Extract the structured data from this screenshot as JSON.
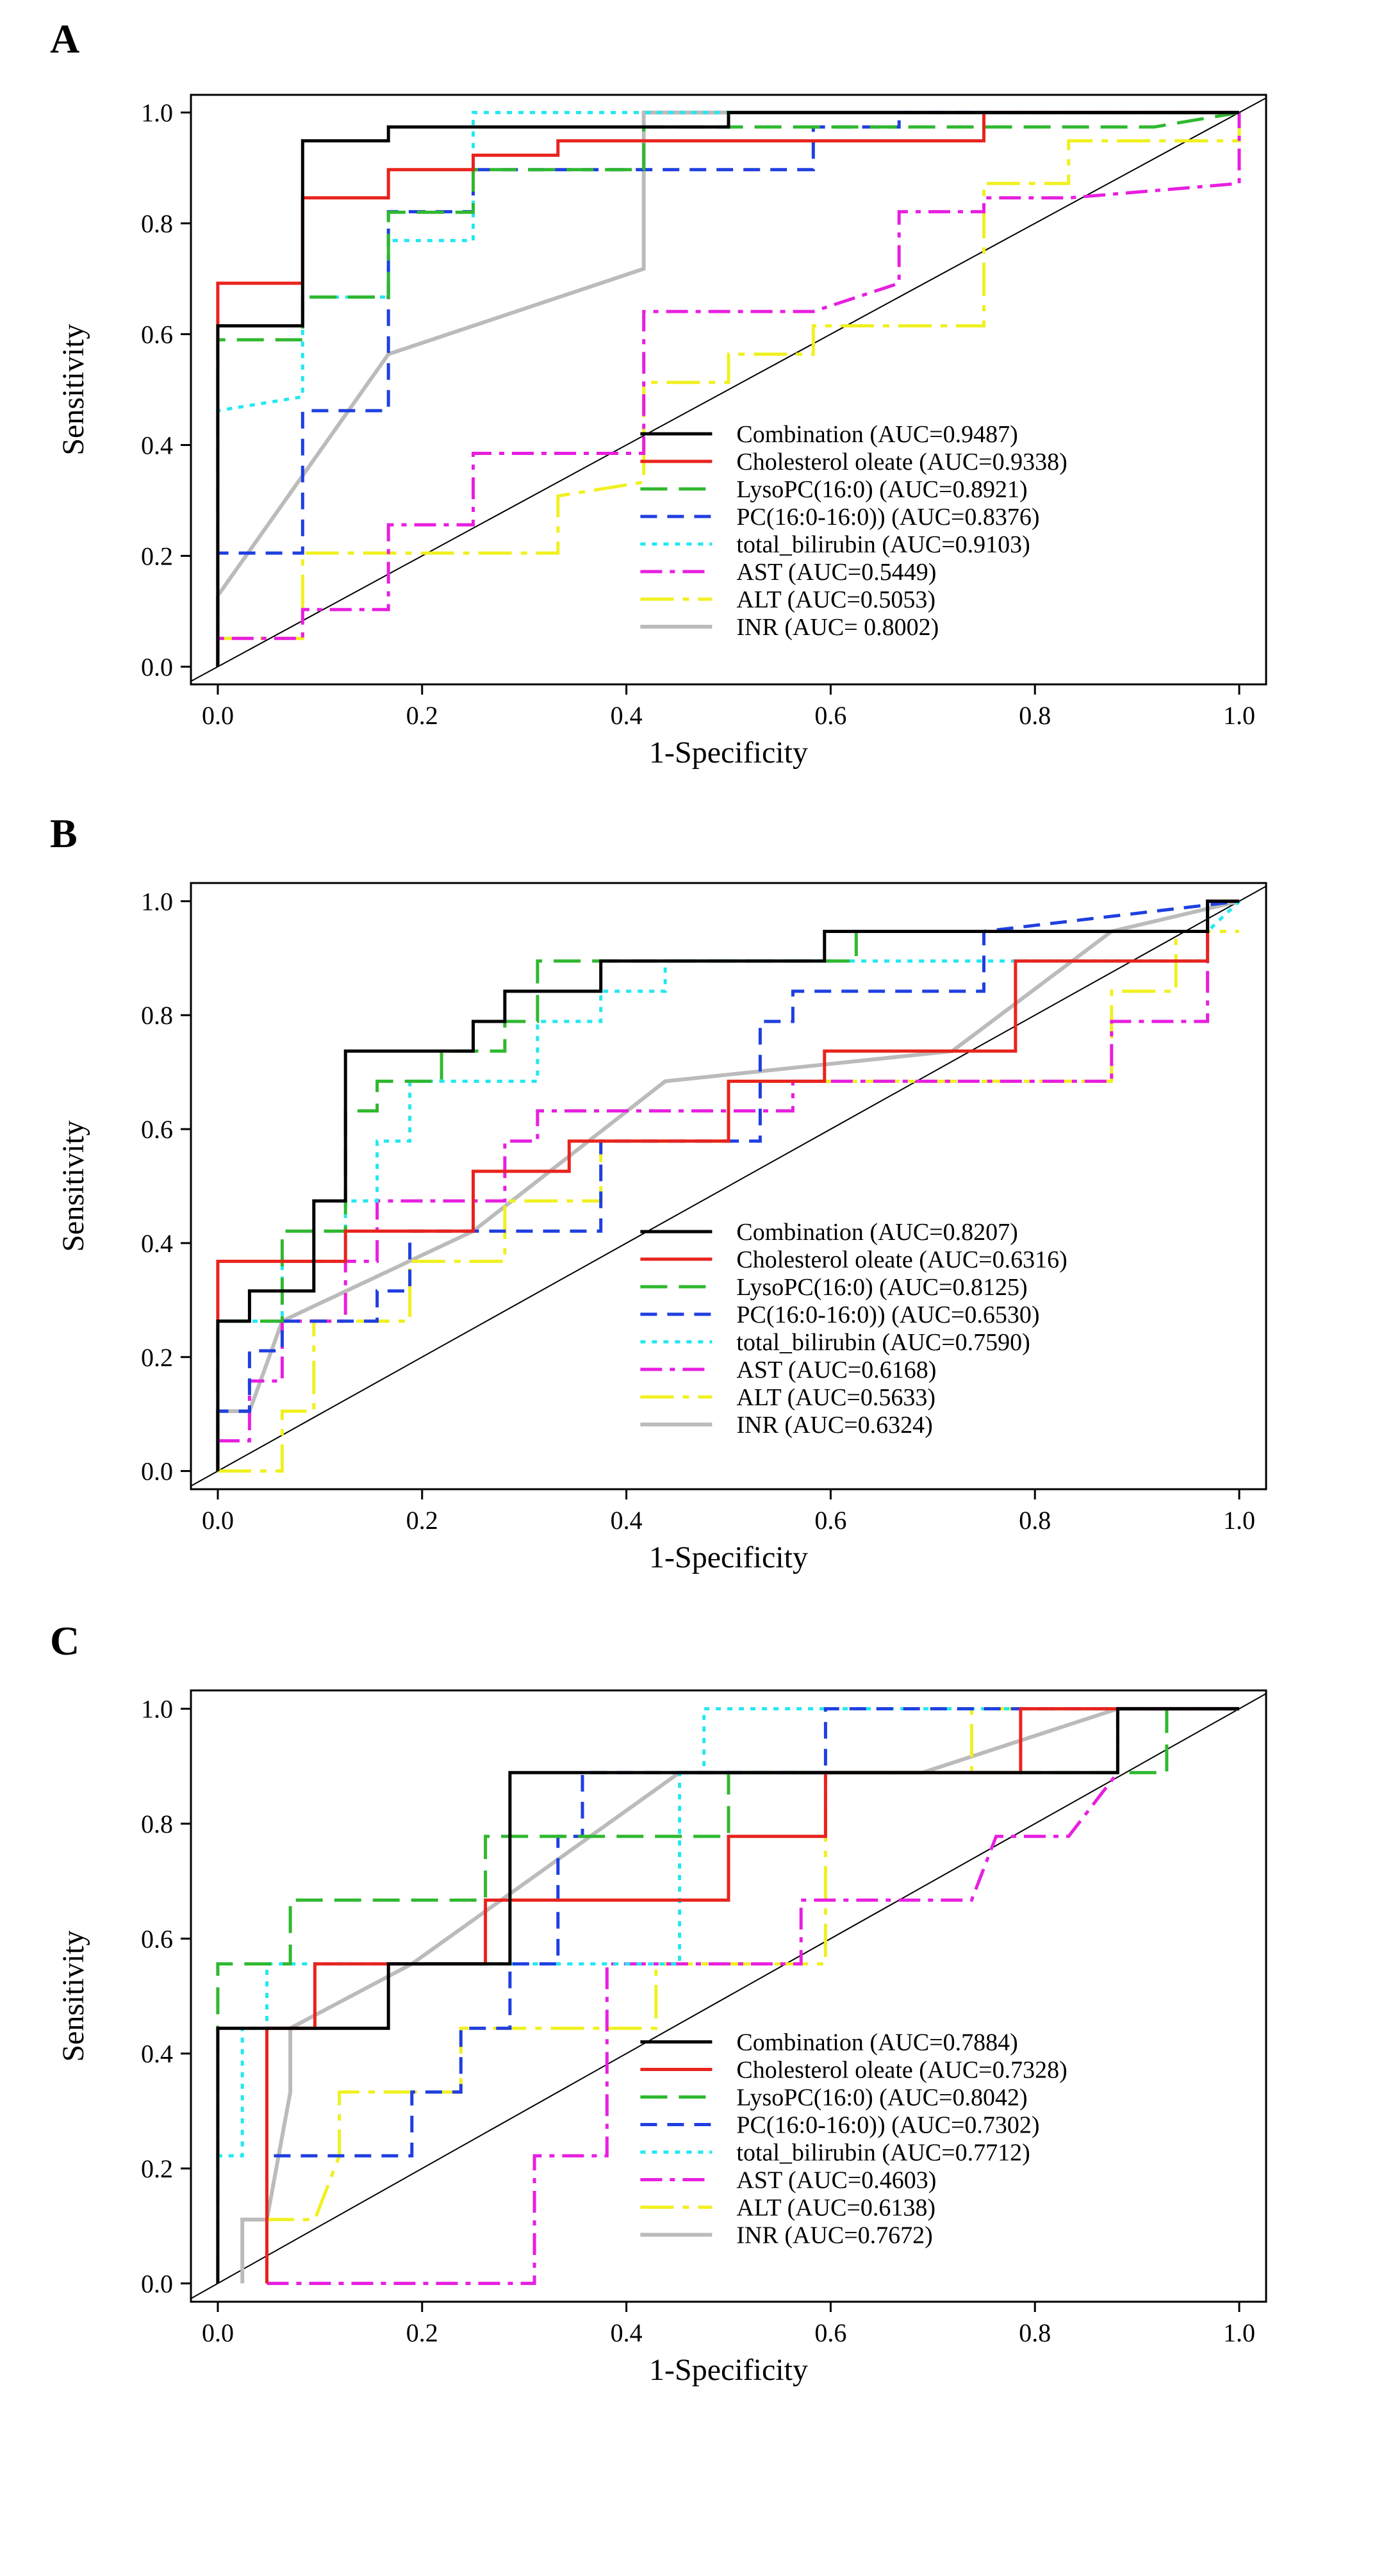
{
  "figure": {
    "panels": [
      "A",
      "B",
      "C"
    ]
  },
  "chart_data": [
    {
      "panel": "A",
      "type": "line",
      "title": "",
      "xlabel": "1-Specificity",
      "ylabel": "Sensitivity",
      "xlim": [
        0,
        1
      ],
      "ylim": [
        0,
        1
      ],
      "xticks": [
        "0.0",
        "0.2",
        "0.4",
        "0.6",
        "0.8",
        "1.0"
      ],
      "yticks": [
        "0.0",
        "0.2",
        "0.4",
        "0.6",
        "0.8",
        "1.0"
      ],
      "diagonal": true,
      "legend_position": "bottom-right",
      "series": [
        {
          "name": "Combination",
          "label": "Combination (AUC=0.9487)",
          "color": "#000000",
          "dash": "solid",
          "x": [
            0,
            0,
            0.083,
            0.083,
            0.167,
            0.167,
            0.25,
            0.25,
            0.333,
            0.333,
            0.5,
            0.5,
            1
          ],
          "y": [
            0,
            0.615,
            0.615,
            0.949,
            0.949,
            0.974,
            0.974,
            0.974,
            0.974,
            0.974,
            0.974,
            1,
            1
          ]
        },
        {
          "name": "Cholesterol oleate",
          "label": "Cholesterol oleate (AUC=0.9338)",
          "color": "#e8231d",
          "dash": "solid",
          "x": [
            0,
            0,
            0.083,
            0.083,
            0.167,
            0.167,
            0.25,
            0.25,
            0.333,
            0.333,
            0.75,
            0.75,
            1
          ],
          "y": [
            0,
            0.692,
            0.692,
            0.846,
            0.846,
            0.897,
            0.897,
            0.923,
            0.923,
            0.949,
            0.949,
            1,
            1
          ]
        },
        {
          "name": "LysoPC(16:0)",
          "label": "LysoPC(16:0) (AUC=0.8921)",
          "color": "#2fb82f",
          "dash": "longdash",
          "x": [
            0,
            0,
            0.083,
            0.083,
            0.167,
            0.167,
            0.25,
            0.25,
            0.417,
            0.417,
            0.917,
            1
          ],
          "y": [
            0,
            0.59,
            0.59,
            0.667,
            0.667,
            0.82,
            0.82,
            0.897,
            0.897,
            0.974,
            0.974,
            1
          ]
        },
        {
          "name": "PC(16:0-16:0))",
          "label": "PC(16:0-16:0)) (AUC=0.8376)",
          "color": "#1f3fe0",
          "dash": "dashed",
          "x": [
            0,
            0,
            0.083,
            0.083,
            0.167,
            0.167,
            0.25,
            0.25,
            0.583,
            0.583,
            0.667,
            0.667,
            1
          ],
          "y": [
            0,
            0.205,
            0.205,
            0.462,
            0.462,
            0.821,
            0.821,
            0.897,
            0.897,
            0.974,
            0.974,
            1,
            1
          ]
        },
        {
          "name": "total_bilirubin",
          "label": "total_bilirubin (AUC=0.9103)",
          "color": "#22e8f0",
          "dash": "dotted",
          "x": [
            0,
            0,
            0.083,
            0.083,
            0.167,
            0.167,
            0.25,
            0.25,
            1
          ],
          "y": [
            0,
            0.462,
            0.487,
            0.667,
            0.667,
            0.769,
            0.769,
            1,
            1
          ]
        },
        {
          "name": "AST",
          "label": "AST (AUC=0.5449)",
          "color": "#e81ee0",
          "dash": "dashdot",
          "x": [
            0,
            0,
            0.083,
            0.083,
            0.167,
            0.167,
            0.25,
            0.25,
            0.417,
            0.417,
            0.583,
            0.667,
            0.667,
            0.75,
            0.75,
            0.833,
            1,
            1
          ],
          "y": [
            0,
            0.051,
            0.051,
            0.103,
            0.103,
            0.256,
            0.256,
            0.385,
            0.385,
            0.641,
            0.641,
            0.692,
            0.821,
            0.821,
            0.846,
            0.846,
            0.872,
            1
          ]
        },
        {
          "name": "ALT",
          "label": "ALT (AUC=0.5053)",
          "color": "#f0f020",
          "dash": "longdashdot",
          "x": [
            0,
            0.083,
            0.083,
            0.333,
            0.333,
            0.417,
            0.417,
            0.5,
            0.5,
            0.583,
            0.583,
            0.75,
            0.75,
            0.833,
            0.833,
            1,
            1
          ],
          "y": [
            0.051,
            0.051,
            0.205,
            0.205,
            0.308,
            0.333,
            0.513,
            0.513,
            0.564,
            0.564,
            0.615,
            0.615,
            0.872,
            0.872,
            0.949,
            0.949,
            1
          ]
        },
        {
          "name": "INR",
          "label": "INR (AUC= 0.8002)",
          "color": "#bbbbbb",
          "dash": "solid",
          "x": [
            0,
            0,
            0.167,
            0.417,
            0.417,
            1
          ],
          "y": [
            0,
            0.128,
            0.564,
            0.718,
            1,
            1
          ]
        }
      ]
    },
    {
      "panel": "B",
      "type": "line",
      "title": "",
      "xlabel": "1-Specificity",
      "ylabel": "Sensitivity",
      "xlim": [
        0,
        1
      ],
      "ylim": [
        0,
        1
      ],
      "xticks": [
        "0.0",
        "0.2",
        "0.4",
        "0.6",
        "0.8",
        "1.0"
      ],
      "yticks": [
        "0.0",
        "0.2",
        "0.4",
        "0.6",
        "0.8",
        "1.0"
      ],
      "diagonal": true,
      "legend_position": "bottom-right",
      "series": [
        {
          "name": "Combination",
          "label": "Combination (AUC=0.8207)",
          "color": "#000000",
          "dash": "solid",
          "x": [
            0,
            0,
            0.031,
            0.031,
            0.094,
            0.094,
            0.125,
            0.125,
            0.25,
            0.25,
            0.281,
            0.281,
            0.375,
            0.375,
            0.594,
            0.594,
            0.969,
            0.969,
            1
          ],
          "y": [
            0,
            0.263,
            0.263,
            0.316,
            0.316,
            0.474,
            0.474,
            0.737,
            0.737,
            0.789,
            0.789,
            0.842,
            0.842,
            0.895,
            0.895,
            0.947,
            0.947,
            1,
            1
          ]
        },
        {
          "name": "Cholesterol oleate",
          "label": "Cholesterol oleate (AUC=0.6316)",
          "color": "#e8231d",
          "dash": "solid",
          "x": [
            0,
            0,
            0.125,
            0.125,
            0.25,
            0.25,
            0.344,
            0.344,
            0.5,
            0.5,
            0.594,
            0.594,
            0.719,
            0.719,
            0.781,
            0.781,
            0.969,
            0.969,
            1
          ],
          "y": [
            0,
            0.368,
            0.368,
            0.421,
            0.421,
            0.526,
            0.526,
            0.579,
            0.579,
            0.684,
            0.684,
            0.737,
            0.737,
            0.737,
            0.737,
            0.895,
            0.895,
            1,
            1
          ]
        },
        {
          "name": "LysoPC(16:0)",
          "label": "LysoPC(16:0) (AUC=0.8125)",
          "color": "#2fb82f",
          "dash": "longdash",
          "x": [
            0,
            0,
            0.063,
            0.063,
            0.125,
            0.125,
            0.156,
            0.156,
            0.219,
            0.219,
            0.281,
            0.281,
            0.313,
            0.313,
            0.625,
            0.625,
            0.969,
            0.969,
            1
          ],
          "y": [
            0,
            0.263,
            0.263,
            0.421,
            0.421,
            0.632,
            0.632,
            0.684,
            0.684,
            0.737,
            0.737,
            0.789,
            0.789,
            0.895,
            0.895,
            0.947,
            0.947,
            1,
            1
          ]
        },
        {
          "name": "PC(16:0-16:0))",
          "label": "PC(16:0-16:0)) (AUC=0.6530)",
          "color": "#1f3fe0",
          "dash": "dashed",
          "x": [
            0,
            0,
            0.031,
            0.031,
            0.063,
            0.063,
            0.156,
            0.156,
            0.188,
            0.188,
            0.375,
            0.375,
            0.531,
            0.531,
            0.563,
            0.563,
            0.75,
            0.75,
            1
          ],
          "y": [
            0,
            0.105,
            0.105,
            0.211,
            0.211,
            0.263,
            0.263,
            0.316,
            0.316,
            0.421,
            0.421,
            0.579,
            0.579,
            0.789,
            0.789,
            0.842,
            0.842,
            0.947,
            1
          ]
        },
        {
          "name": "total_bilirubin",
          "label": "total_bilirubin (AUC=0.7590)",
          "color": "#22e8f0",
          "dash": "dotted",
          "x": [
            0,
            0,
            0.063,
            0.063,
            0.125,
            0.125,
            0.156,
            0.156,
            0.188,
            0.188,
            0.313,
            0.313,
            0.375,
            0.375,
            0.438,
            0.438,
            0.969,
            0.969,
            1
          ],
          "y": [
            0,
            0.263,
            0.263,
            0.368,
            0.368,
            0.474,
            0.474,
            0.579,
            0.579,
            0.684,
            0.684,
            0.789,
            0.789,
            0.842,
            0.842,
            0.895,
            0.895,
            0.947,
            1
          ]
        },
        {
          "name": "AST",
          "label": "AST (AUC=0.6168)",
          "color": "#e81ee0",
          "dash": "dashdot",
          "x": [
            0,
            0,
            0.031,
            0.031,
            0.063,
            0.063,
            0.125,
            0.125,
            0.156,
            0.156,
            0.281,
            0.281,
            0.313,
            0.313,
            0.563,
            0.563,
            0.875,
            0.875,
            0.969,
            0.969,
            1
          ],
          "y": [
            0.053,
            0.053,
            0.053,
            0.158,
            0.158,
            0.263,
            0.263,
            0.368,
            0.368,
            0.474,
            0.474,
            0.579,
            0.579,
            0.632,
            0.632,
            0.684,
            0.684,
            0.789,
            0.789,
            1,
            1
          ]
        },
        {
          "name": "ALT",
          "label": "ALT (AUC=0.5633)",
          "color": "#f0f020",
          "dash": "longdashdot",
          "x": [
            0,
            0.063,
            0.063,
            0.094,
            0.094,
            0.188,
            0.188,
            0.281,
            0.281,
            0.375,
            0.375,
            0.5,
            0.5,
            0.875,
            0.875,
            0.938,
            0.938,
            1
          ],
          "y": [
            0,
            0,
            0.105,
            0.105,
            0.263,
            0.263,
            0.368,
            0.368,
            0.474,
            0.474,
            0.579,
            0.579,
            0.684,
            0.684,
            0.842,
            0.842,
            0.947,
            0.947
          ]
        },
        {
          "name": "INR",
          "label": "INR (AUC=0.6324)",
          "color": "#bbbbbb",
          "dash": "solid",
          "x": [
            0,
            0,
            0.031,
            0.063,
            0.25,
            0.438,
            0.719,
            0.875,
            1
          ],
          "y": [
            0,
            0.105,
            0.105,
            0.263,
            0.421,
            0.684,
            0.737,
            0.947,
            1
          ]
        }
      ]
    },
    {
      "panel": "C",
      "type": "line",
      "title": "",
      "xlabel": "1-Specificity",
      "ylabel": "Sensitivity",
      "xlim": [
        0,
        1
      ],
      "ylim": [
        0,
        1
      ],
      "xticks": [
        "0.0",
        "0.2",
        "0.4",
        "0.6",
        "0.8",
        "1.0"
      ],
      "yticks": [
        "0.0",
        "0.2",
        "0.4",
        "0.6",
        "0.8",
        "1.0"
      ],
      "diagonal": true,
      "legend_position": "bottom-right",
      "series": [
        {
          "name": "Combination",
          "label": "Combination (AUC=0.7884)",
          "color": "#000000",
          "dash": "solid",
          "x": [
            0,
            0,
            0.167,
            0.167,
            0.286,
            0.286,
            0.405,
            0.405,
            0.881,
            0.881,
            1
          ],
          "y": [
            0,
            0.444,
            0.444,
            0.556,
            0.556,
            0.889,
            0.889,
            0.889,
            0.889,
            1,
            1
          ]
        },
        {
          "name": "Cholesterol oleate",
          "label": "Cholesterol oleate (AUC=0.7328)",
          "color": "#e8231d",
          "dash": "solid",
          "x": [
            0.048,
            0.048,
            0.095,
            0.095,
            0.262,
            0.262,
            0.5,
            0.5,
            0.595,
            0.595,
            0.786,
            0.786,
            1
          ],
          "y": [
            0,
            0.444,
            0.444,
            0.556,
            0.556,
            0.667,
            0.667,
            0.778,
            0.778,
            0.889,
            0.889,
            1,
            1
          ]
        },
        {
          "name": "LysoPC(16:0)",
          "label": "LysoPC(16:0) (AUC=0.8042)",
          "color": "#2fb82f",
          "dash": "longdash",
          "x": [
            0,
            0,
            0.071,
            0.071,
            0.262,
            0.262,
            0.5,
            0.5,
            0.595,
            0.595,
            0.929,
            0.929
          ],
          "y": [
            0,
            0.556,
            0.556,
            0.667,
            0.667,
            0.778,
            0.778,
            0.889,
            0.889,
            0.889,
            0.889,
            1
          ]
        },
        {
          "name": "PC(16:0-16:0))",
          "label": "PC(16:0-16:0)) (AUC=0.7302)",
          "color": "#1f3fe0",
          "dash": "dashed",
          "x": [
            0.048,
            0.048,
            0.19,
            0.19,
            0.238,
            0.238,
            0.286,
            0.286,
            0.333,
            0.333,
            0.357,
            0.357,
            0.595,
            0.595,
            1
          ],
          "y": [
            0,
            0.222,
            0.222,
            0.333,
            0.333,
            0.444,
            0.444,
            0.556,
            0.556,
            0.778,
            0.778,
            0.889,
            0.889,
            1,
            1
          ]
        },
        {
          "name": "total_bilirubin",
          "label": "total_bilirubin (AUC=0.7712)",
          "color": "#22e8f0",
          "dash": "dotted",
          "x": [
            0,
            0,
            0.024,
            0.024,
            0.048,
            0.048,
            0.19,
            0.19,
            0.452,
            0.452,
            0.476,
            0.476,
            1
          ],
          "y": [
            0,
            0.222,
            0.222,
            0.444,
            0.444,
            0.556,
            0.556,
            0.556,
            0.556,
            0.889,
            0.889,
            1,
            1
          ]
        },
        {
          "name": "AST",
          "label": "AST (AUC=0.4603)",
          "color": "#e81ee0",
          "dash": "dashdot",
          "x": [
            0.048,
            0.31,
            0.31,
            0.381,
            0.381,
            0.381,
            0.381,
            0.571,
            0.571,
            0.738,
            0.762,
            0.833,
            0.881,
            0.881,
            1
          ],
          "y": [
            0,
            0,
            0.222,
            0.222,
            0.444,
            0.556,
            0.556,
            0.556,
            0.667,
            0.667,
            0.778,
            0.778,
            0.889,
            1,
            1
          ]
        },
        {
          "name": "ALT",
          "label": "ALT (AUC=0.6138)",
          "color": "#f0f020",
          "dash": "longdashdot",
          "x": [
            0.048,
            0.048,
            0.095,
            0.119,
            0.119,
            0.238,
            0.238,
            0.429,
            0.429,
            0.595,
            0.595,
            0.738,
            0.738,
            1
          ],
          "y": [
            0,
            0.111,
            0.111,
            0.222,
            0.333,
            0.333,
            0.444,
            0.444,
            0.556,
            0.556,
            0.889,
            0.889,
            1,
            1
          ]
        },
        {
          "name": "INR",
          "label": "INR (AUC=0.7672)",
          "color": "#bbbbbb",
          "dash": "solid",
          "x": [
            0.024,
            0.024,
            0.048,
            0.071,
            0.071,
            0.19,
            0.452,
            0.69,
            0.881,
            1
          ],
          "y": [
            0,
            0.111,
            0.111,
            0.333,
            0.444,
            0.556,
            0.889,
            0.889,
            1,
            1
          ]
        }
      ]
    }
  ]
}
